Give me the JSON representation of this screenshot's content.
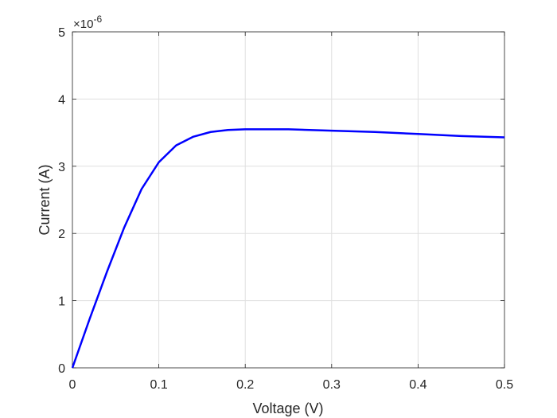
{
  "chart_data": {
    "type": "line",
    "xlabel": "Voltage (V)",
    "ylabel": "Current (A)",
    "xlim": [
      0,
      0.5
    ],
    "ylim": [
      0,
      5
    ],
    "y_exponent_label": "×10",
    "y_exponent_power": "-6",
    "grid": true,
    "line_color": "#0000ff",
    "xticks": [
      {
        "value": 0,
        "label": "0"
      },
      {
        "value": 0.1,
        "label": "0.1"
      },
      {
        "value": 0.2,
        "label": "0.2"
      },
      {
        "value": 0.3,
        "label": "0.3"
      },
      {
        "value": 0.4,
        "label": "0.4"
      },
      {
        "value": 0.5,
        "label": "0.5"
      }
    ],
    "yticks": [
      {
        "value": 0,
        "label": "0"
      },
      {
        "value": 1,
        "label": "1"
      },
      {
        "value": 2,
        "label": "2"
      },
      {
        "value": 3,
        "label": "3"
      },
      {
        "value": 4,
        "label": "4"
      },
      {
        "value": 5,
        "label": "5"
      }
    ],
    "series": [
      {
        "x": [
          0,
          0.02,
          0.04,
          0.06,
          0.08,
          0.1,
          0.12,
          0.14,
          0.16,
          0.18,
          0.2,
          0.22,
          0.25,
          0.3,
          0.35,
          0.4,
          0.45,
          0.5
        ],
        "y": [
          0,
          0.73,
          1.43,
          2.09,
          2.66,
          3.06,
          3.31,
          3.44,
          3.51,
          3.54,
          3.55,
          3.55,
          3.55,
          3.53,
          3.51,
          3.48,
          3.45,
          3.43
        ]
      }
    ]
  }
}
